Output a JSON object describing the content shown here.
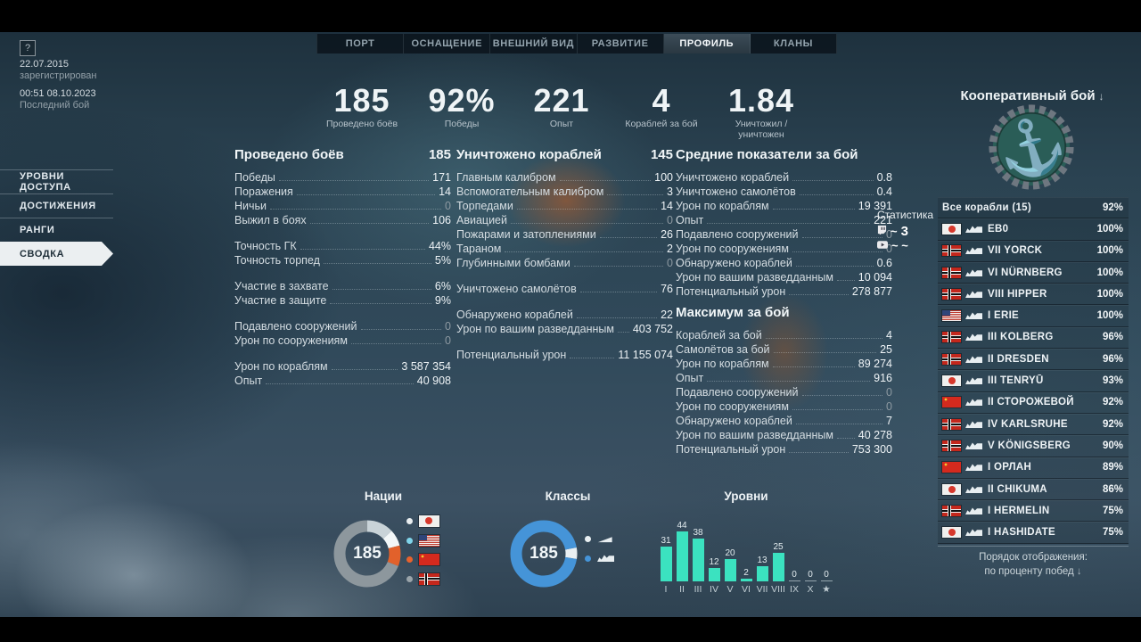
{
  "meta": {
    "help": "?",
    "registered_date": "22.07.2015",
    "registered_caption": "зарегистрирован",
    "last_battle_date": "00:51  08.10.2023",
    "last_battle_caption": "Последний бой"
  },
  "tabs": [
    {
      "id": "port",
      "label": "ПОРТ",
      "active": false
    },
    {
      "id": "equipment",
      "label": "ОСНАЩЕНИЕ",
      "active": false
    },
    {
      "id": "exterior",
      "label": "ВНЕШНИЙ ВИД",
      "active": false
    },
    {
      "id": "development",
      "label": "РАЗВИТИЕ",
      "active": false
    },
    {
      "id": "profile",
      "label": "ПРОФИЛЬ",
      "active": true
    },
    {
      "id": "clans",
      "label": "КЛАНЫ",
      "active": false
    }
  ],
  "sidebar": {
    "items": [
      {
        "id": "access-levels",
        "label": "УРОВНИ ДОСТУПА",
        "active": false
      },
      {
        "id": "achievements",
        "label": "ДОСТИЖЕНИЯ",
        "active": false
      },
      {
        "id": "ranks",
        "label": "РАНГИ",
        "active": false
      },
      {
        "id": "summary",
        "label": "СВОДКА",
        "active": true
      }
    ]
  },
  "summary": [
    {
      "value": "185",
      "label": "Проведено боёв"
    },
    {
      "value": "92%",
      "label": "Победы"
    },
    {
      "value": "221",
      "label": "Опыт"
    },
    {
      "value": "4",
      "label": "Кораблей за бой"
    },
    {
      "value": "1.84",
      "label": "Уничтожил / уничтожен"
    }
  ],
  "stat_blocks": [
    {
      "id": "battles",
      "title": "Проведено боёв",
      "total": "185",
      "groups": [
        [
          {
            "label": "Победы",
            "value": "171"
          },
          {
            "label": "Поражения",
            "value": "14"
          },
          {
            "label": "Ничьи",
            "value": "0",
            "dim": true
          },
          {
            "label": "Выжил в боях",
            "value": "106"
          }
        ],
        [
          {
            "label": "Точность ГК",
            "value": "44%"
          },
          {
            "label": "Точность торпед",
            "value": "5%"
          }
        ],
        [
          {
            "label": "Участие в захвате",
            "value": "6%"
          },
          {
            "label": "Участие в защите",
            "value": "9%"
          }
        ],
        [
          {
            "label": "Подавлено сооружений",
            "value": "0",
            "dim": true
          },
          {
            "label": "Урон по сооружениям",
            "value": "0",
            "dim": true
          }
        ],
        [
          {
            "label": "Урон по кораблям",
            "value": "3 587 354"
          },
          {
            "label": "Опыт",
            "value": "40 908"
          }
        ]
      ]
    },
    {
      "id": "destroyed",
      "title": "Уничтожено кораблей",
      "total": "145",
      "groups": [
        [
          {
            "label": "Главным калибром",
            "value": "100"
          },
          {
            "label": "Вспомогательным калибром",
            "value": "3"
          },
          {
            "label": "Торпедами",
            "value": "14"
          },
          {
            "label": "Авиацией",
            "value": "0",
            "dim": true
          },
          {
            "label": "Пожарами и затоплениями",
            "value": "26"
          },
          {
            "label": "Тараном",
            "value": "2"
          },
          {
            "label": "Глубинными бомбами",
            "value": "0",
            "dim": true
          }
        ],
        [
          {
            "label": "Уничтожено самолётов",
            "value": "76"
          }
        ],
        [
          {
            "label": "Обнаружено кораблей",
            "value": "22"
          },
          {
            "label": "Урон по вашим разведданным",
            "value": "403 752"
          }
        ],
        [
          {
            "label": "Потенциальный урон",
            "value": "11 155 074"
          }
        ]
      ]
    },
    {
      "id": "averages",
      "title": "Средние показатели за бой",
      "total": "",
      "groups": [
        [
          {
            "label": "Уничтожено кораблей",
            "value": "0.8"
          },
          {
            "label": "Уничтожено самолётов",
            "value": "0.4"
          },
          {
            "label": "Урон по кораблям",
            "value": "19 391"
          },
          {
            "label": "Опыт",
            "value": "221"
          },
          {
            "label": "Подавлено сооружений",
            "value": "0",
            "dim": true
          },
          {
            "label": "Урон по сооружениям",
            "value": "0",
            "dim": true
          },
          {
            "label": "Обнаружено кораблей",
            "value": "0.6"
          },
          {
            "label": "Урон по вашим разведданным",
            "value": "10 094"
          },
          {
            "label": "Потенциальный урон",
            "value": "278 877"
          }
        ]
      ]
    },
    {
      "id": "maximum",
      "title": "Максимум за бой",
      "total": "",
      "groups": [
        [
          {
            "label": "Кораблей за бой",
            "value": "4"
          },
          {
            "label": "Самолётов за бой",
            "value": "25"
          },
          {
            "label": "Урон по кораблям",
            "value": "89 274"
          },
          {
            "label": "Опыт",
            "value": "916"
          },
          {
            "label": "Подавлено сооружений",
            "value": "0",
            "dim": true
          },
          {
            "label": "Урон по сооружениям",
            "value": "0",
            "dim": true
          },
          {
            "label": "Обнаружено кораблей",
            "value": "7"
          },
          {
            "label": "Урон по вашим разведданным",
            "value": "40 278"
          },
          {
            "label": "Потенциальный урон",
            "value": "753 300"
          }
        ]
      ]
    }
  ],
  "mode_selector": {
    "title": "Кооперативный бой",
    "arrow": "↓"
  },
  "ship_panel": {
    "all_row": {
      "label": "Все корабли (15)",
      "value": "92%"
    },
    "rows": [
      {
        "nation": "japan",
        "name": "ЕВ0",
        "value": "100%"
      },
      {
        "nation": "germany",
        "name": "VII YORCK",
        "value": "100%"
      },
      {
        "nation": "germany",
        "name": "VI NÜRNBERG",
        "value": "100%"
      },
      {
        "nation": "germany",
        "name": "VIII HIPPER",
        "value": "100%"
      },
      {
        "nation": "usa",
        "name": "I ERIE",
        "value": "100%"
      },
      {
        "nation": "germany",
        "name": "III KOLBERG",
        "value": "96%"
      },
      {
        "nation": "germany",
        "name": "II DRESDEN",
        "value": "96%"
      },
      {
        "nation": "japan",
        "name": "III TENRYŪ",
        "value": "93%"
      },
      {
        "nation": "ussr",
        "name": "II СТОРОЖЕВОЙ",
        "value": "92%"
      },
      {
        "nation": "germany",
        "name": "IV KARLSRUHE",
        "value": "92%"
      },
      {
        "nation": "germany",
        "name": "V KÖNIGSBERG",
        "value": "90%"
      },
      {
        "nation": "ussr",
        "name": "I ОРЛАН",
        "value": "89%"
      },
      {
        "nation": "japan",
        "name": "II CHIKUMA",
        "value": "86%"
      },
      {
        "nation": "germany",
        "name": "I HERMELIN",
        "value": "75%"
      },
      {
        "nation": "japan",
        "name": "I HASHIDATE",
        "value": "75%"
      }
    ],
    "sort_caption": "Порядок отображения:",
    "sort_value": "по проценту побед",
    "sort_arrow": "↓"
  },
  "stream_overlay": {
    "title": "Статистика",
    "row1_text": "~",
    "row1_count": "3",
    "row2_text": "~  ~"
  },
  "chart_data": [
    {
      "type": "pie",
      "title": "Нации",
      "center_label": "185",
      "slices": [
        {
          "label": "japan",
          "percent": 13,
          "color": "#c9d3d8"
        },
        {
          "label": "usa",
          "percent": 8,
          "color": "#f3f7f8"
        },
        {
          "label": "ussr",
          "percent": 10,
          "color": "#e2612b"
        },
        {
          "label": "germany",
          "percent": 69,
          "color": "#8d979d"
        }
      ],
      "legend": [
        {
          "flag": "japan",
          "dot_color": "#e9eef0"
        },
        {
          "flag": "usa",
          "dot_color": "#7fd4ea"
        },
        {
          "flag": "ussr",
          "dot_color": "#e8622d"
        },
        {
          "flag": "germany",
          "dot_color": "#9aa4aa"
        }
      ]
    },
    {
      "type": "pie",
      "title": "Классы",
      "center_label": "185",
      "start_percent": 22,
      "slices": [
        {
          "label": "destroyers",
          "percent": 5.5,
          "color": "#e9eff2"
        },
        {
          "label": "cruisers",
          "percent": 94.5,
          "color": "#4594d8"
        }
      ],
      "legend": [
        {
          "class": "destroyer",
          "dot_color": "#e9eff2"
        },
        {
          "class": "cruiser",
          "dot_color": "#4594d8"
        }
      ]
    },
    {
      "type": "bar",
      "title": "Уровни",
      "categories": [
        "I",
        "II",
        "III",
        "IV",
        "V",
        "VI",
        "VII",
        "VIII",
        "IX",
        "X",
        "★"
      ],
      "values": [
        31,
        44,
        38,
        12,
        20,
        2,
        13,
        25,
        0,
        0,
        0
      ],
      "bar_color": "#3be2c0",
      "ylim": [
        0,
        44
      ]
    }
  ]
}
